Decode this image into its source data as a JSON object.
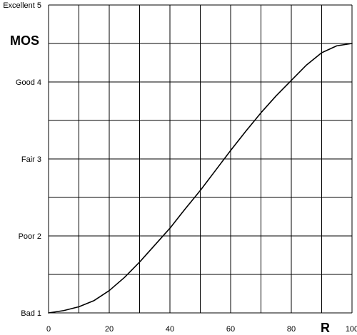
{
  "chart_data": {
    "type": "line",
    "x_label": "R",
    "y_label": "MOS",
    "xlim": [
      0,
      100
    ],
    "ylim": [
      1,
      5
    ],
    "grid": true,
    "x_ticks": [
      {
        "value": 0,
        "label": "0"
      },
      {
        "value": 20,
        "label": "20"
      },
      {
        "value": 40,
        "label": "40"
      },
      {
        "value": 60,
        "label": "60"
      },
      {
        "value": 80,
        "label": "80"
      },
      {
        "value": 100,
        "label": "100"
      }
    ],
    "x_grid_values": [
      0,
      10,
      20,
      30,
      40,
      50,
      60,
      70,
      80,
      90,
      100
    ],
    "y_ticks": [
      {
        "value": 1,
        "label": "Bad 1"
      },
      {
        "value": 2,
        "label": "Poor 2"
      },
      {
        "value": 3,
        "label": "Fair 3"
      },
      {
        "value": 4,
        "label": "Good 4"
      },
      {
        "value": 5,
        "label": "Excellent 5"
      }
    ],
    "y_grid_values": [
      1,
      1.5,
      2,
      2.5,
      3,
      3.5,
      4,
      4.5,
      5
    ],
    "series": [
      {
        "x": [
          0,
          5,
          10,
          15,
          20,
          25,
          30,
          35,
          40,
          45,
          50,
          55,
          60,
          65,
          70,
          75,
          80,
          85,
          90,
          95,
          100
        ],
        "y": [
          1.0,
          1.03,
          1.08,
          1.16,
          1.29,
          1.46,
          1.66,
          1.88,
          2.1,
          2.35,
          2.59,
          2.85,
          3.11,
          3.36,
          3.6,
          3.82,
          4.02,
          4.22,
          4.38,
          4.47,
          4.5
        ]
      }
    ],
    "style": {
      "line_color": "#000000",
      "grid_color": "#000000",
      "background": "#ffffff"
    }
  }
}
